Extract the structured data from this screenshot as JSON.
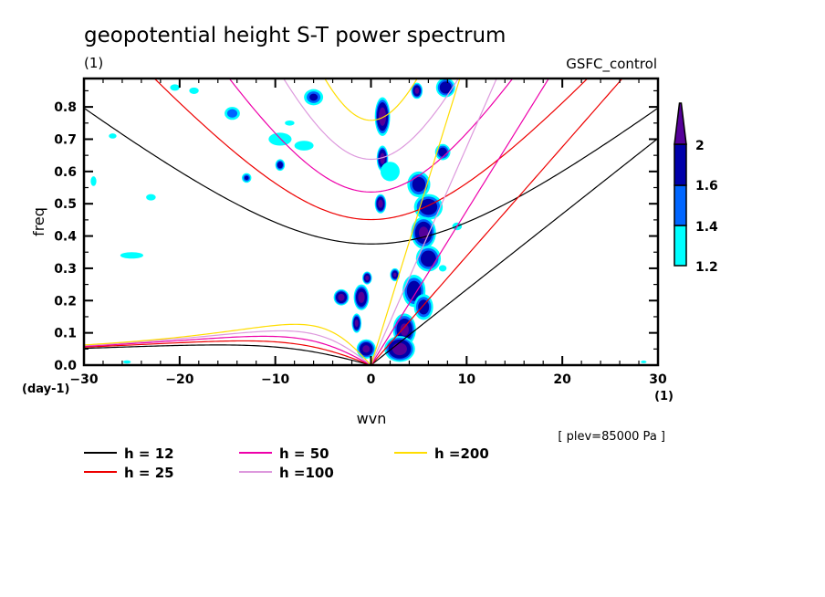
{
  "chart_data": {
    "type": "heatmap",
    "title": "geopotential height S-T power spectrum",
    "subtitle_left": "(1)",
    "subtitle_right": "GSFC_control",
    "xlabel": "wvn",
    "ylabel": "freq",
    "x_unit": "(1)",
    "y_unit": "(day-1)",
    "xlim": [
      -30,
      30
    ],
    "ylim": [
      0,
      0.888
    ],
    "x_ticks": [
      -30,
      -20,
      -10,
      0,
      10,
      20,
      30
    ],
    "x_tick_labels": [
      "−30",
      "−20",
      "−10",
      "0",
      "10",
      "20",
      "30"
    ],
    "y_ticks": [
      0.0,
      0.1,
      0.2,
      0.3,
      0.4,
      0.5,
      0.6,
      0.7,
      0.8
    ],
    "y_tick_labels": [
      "0.0",
      "0.1",
      "0.2",
      "0.3",
      "0.4",
      "0.5",
      "0.6",
      "0.7",
      "0.8"
    ],
    "annotation": "[ plev=85000 Pa ]",
    "colorbar": {
      "levels": [
        1.2,
        1.4,
        1.6,
        2
      ],
      "labels": [
        "1.2",
        "1.4",
        "1.6",
        "2"
      ],
      "colors": [
        "#00ffff",
        "#0066ff",
        "#0000aa",
        "#550099"
      ],
      "extend": "max"
    },
    "contour_fill_levels": [
      {
        "min": 1.2,
        "max": 1.4,
        "color": "#00ffff"
      },
      {
        "min": 1.4,
        "max": 1.6,
        "color": "#0066ff"
      },
      {
        "min": 1.6,
        "max": 2.0,
        "color": "#0000aa"
      },
      {
        "min": 2.0,
        "color": "#550099"
      }
    ],
    "blobs": [
      {
        "x": 1.2,
        "y": 0.77,
        "rx": 0.8,
        "ry": 0.06,
        "v": 2.3
      },
      {
        "x": 1.2,
        "y": 0.64,
        "rx": 0.6,
        "ry": 0.04,
        "v": 2.2
      },
      {
        "x": 1.0,
        "y": 0.5,
        "rx": 0.6,
        "ry": 0.03,
        "v": 2.2
      },
      {
        "x": 4.8,
        "y": 0.85,
        "rx": 0.6,
        "ry": 0.025,
        "v": 2.1
      },
      {
        "x": 7.8,
        "y": 0.86,
        "rx": 1.0,
        "ry": 0.03,
        "v": 1.9
      },
      {
        "x": 5.0,
        "y": 0.56,
        "rx": 1.2,
        "ry": 0.04,
        "v": 1.8
      },
      {
        "x": 7.5,
        "y": 0.66,
        "rx": 0.8,
        "ry": 0.025,
        "v": 1.8
      },
      {
        "x": 6.0,
        "y": 0.49,
        "rx": 1.5,
        "ry": 0.04,
        "v": 1.9
      },
      {
        "x": 5.5,
        "y": 0.41,
        "rx": 1.3,
        "ry": 0.05,
        "v": 2.1
      },
      {
        "x": 6.0,
        "y": 0.33,
        "rx": 1.3,
        "ry": 0.04,
        "v": 1.9
      },
      {
        "x": 4.5,
        "y": 0.23,
        "rx": 1.2,
        "ry": 0.05,
        "v": 1.9
      },
      {
        "x": 5.5,
        "y": 0.18,
        "rx": 1.0,
        "ry": 0.04,
        "v": 1.8
      },
      {
        "x": 3.5,
        "y": 0.11,
        "rx": 1.2,
        "ry": 0.05,
        "v": 2.1
      },
      {
        "x": 3.0,
        "y": 0.05,
        "rx": 1.6,
        "ry": 0.04,
        "v": 2.3
      },
      {
        "x": -0.5,
        "y": 0.05,
        "rx": 1.0,
        "ry": 0.03,
        "v": 2.1
      },
      {
        "x": -1.5,
        "y": 0.13,
        "rx": 0.5,
        "ry": 0.03,
        "v": 2.1
      },
      {
        "x": -3.1,
        "y": 0.21,
        "rx": 0.8,
        "ry": 0.025,
        "v": 2.2
      },
      {
        "x": -1.0,
        "y": 0.21,
        "rx": 0.8,
        "ry": 0.04,
        "v": 2.2
      },
      {
        "x": -0.4,
        "y": 0.27,
        "rx": 0.5,
        "ry": 0.02,
        "v": 2.1
      },
      {
        "x": 2.5,
        "y": 0.28,
        "rx": 0.5,
        "ry": 0.02,
        "v": 2.0
      },
      {
        "x": -9.5,
        "y": 0.62,
        "rx": 0.5,
        "ry": 0.018,
        "v": 1.8
      },
      {
        "x": -14.5,
        "y": 0.78,
        "rx": 0.8,
        "ry": 0.02,
        "v": 1.5
      },
      {
        "x": -6.0,
        "y": 0.83,
        "rx": 1.0,
        "ry": 0.025,
        "v": 1.6
      },
      {
        "x": -13.0,
        "y": 0.58,
        "rx": 0.5,
        "ry": 0.015,
        "v": 1.6
      },
      {
        "x": -9.5,
        "y": 0.7,
        "rx": 1.2,
        "ry": 0.02,
        "v": 1.3
      },
      {
        "x": -7.0,
        "y": 0.68,
        "rx": 1.0,
        "ry": 0.015,
        "v": 1.3
      },
      {
        "x": -25.0,
        "y": 0.34,
        "rx": 1.2,
        "ry": 0.01,
        "v": 1.3
      },
      {
        "x": -29.0,
        "y": 0.57,
        "rx": 0.3,
        "ry": 0.015,
        "v": 1.3
      },
      {
        "x": -27.0,
        "y": 0.71,
        "rx": 0.4,
        "ry": 0.008,
        "v": 1.3
      },
      {
        "x": -23.0,
        "y": 0.52,
        "rx": 0.5,
        "ry": 0.01,
        "v": 1.3
      },
      {
        "x": -20.5,
        "y": 0.86,
        "rx": 0.5,
        "ry": 0.01,
        "v": 1.3
      },
      {
        "x": -18.5,
        "y": 0.85,
        "rx": 0.5,
        "ry": 0.01,
        "v": 1.3
      },
      {
        "x": -8.5,
        "y": 0.75,
        "rx": 0.5,
        "ry": 0.008,
        "v": 1.3
      },
      {
        "x": -25.5,
        "y": 0.01,
        "rx": 0.4,
        "ry": 0.005,
        "v": 1.25
      },
      {
        "x": 2.0,
        "y": 0.6,
        "rx": 1.0,
        "ry": 0.03,
        "v": 1.35
      },
      {
        "x": 9.0,
        "y": 0.43,
        "rx": 0.5,
        "ry": 0.012,
        "v": 1.3
      },
      {
        "x": 7.5,
        "y": 0.3,
        "rx": 0.4,
        "ry": 0.01,
        "v": 1.3
      },
      {
        "x": 28.5,
        "y": 0.01,
        "rx": 0.3,
        "ry": 0.004,
        "v": 1.25
      }
    ],
    "dispersion_curves": {
      "equivalent_depths": [
        12,
        25,
        50,
        100,
        200
      ],
      "wave_types": [
        "kelvin",
        "inertio-gravity n=1",
        "mixed rossby-gravity"
      ]
    },
    "legend": [
      {
        "label": "h = 12",
        "color": "#000000"
      },
      {
        "label": "h = 25",
        "color": "#ee0000"
      },
      {
        "label": "h = 50",
        "color": "#ee00aa"
      },
      {
        "label": "h =100",
        "color": "#dd99dd"
      },
      {
        "label": "h =200",
        "color": "#ffdd00"
      }
    ]
  }
}
